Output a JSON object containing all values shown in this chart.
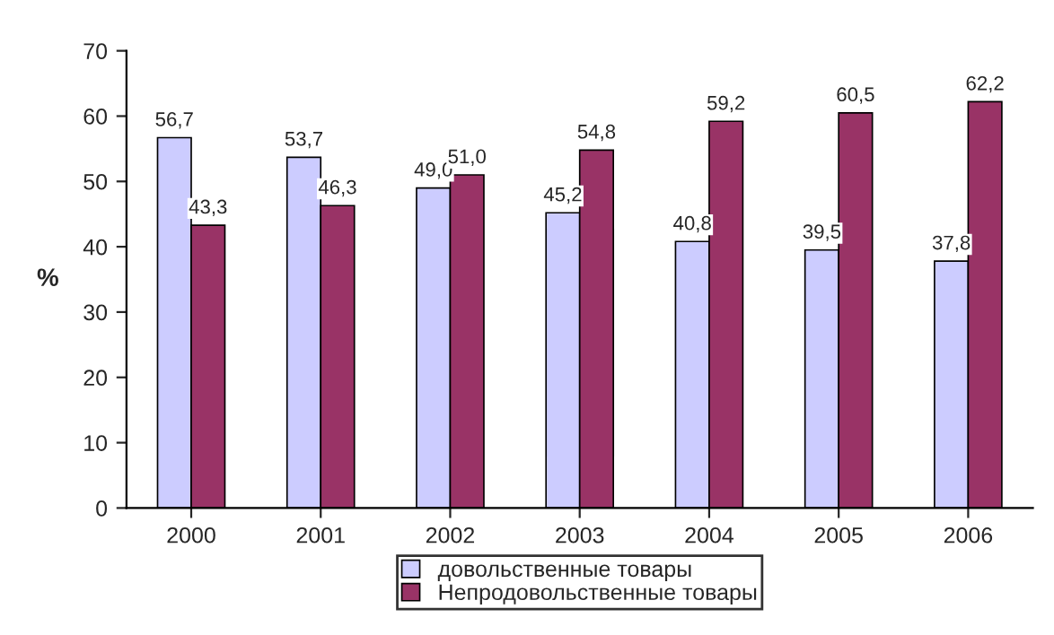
{
  "chart_data": {
    "type": "bar",
    "ylabel": "%",
    "categories": [
      "2000",
      "2001",
      "2002",
      "2003",
      "2004",
      "2005",
      "2006"
    ],
    "series": [
      {
        "name": "довольственные товары",
        "color": "#ccccff",
        "values": [
          56.7,
          53.7,
          49.0,
          45.2,
          40.8,
          39.5,
          37.8
        ],
        "value_labels": [
          "56,7",
          "53,7",
          "49,0",
          "45,2",
          "40,8",
          "39,5",
          "37,8"
        ]
      },
      {
        "name": "Непродовольственные товары",
        "color": "#993366",
        "values": [
          43.3,
          46.3,
          51.0,
          54.8,
          59.2,
          60.5,
          62.2
        ],
        "value_labels": [
          "43,3",
          "46,3",
          "51,0",
          "54,8",
          "59,2",
          "60,5",
          "62,2"
        ]
      }
    ],
    "ylim": [
      0,
      70
    ],
    "yticks": [
      0,
      10,
      20,
      30,
      40,
      50,
      60,
      70
    ],
    "grid": false,
    "legend": "bottom"
  }
}
